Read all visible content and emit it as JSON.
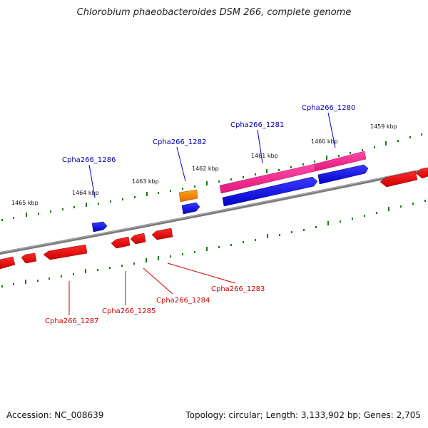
{
  "title": "Chlorobium phaeobacteroides DSM 266, complete genome",
  "footer": {
    "accession": "Accession: NC_008639",
    "summary": "Topology: circular; Length: 3,133,902 bp; Genes: 2,705"
  },
  "colors": {
    "backbone": "#808080",
    "tick": "#1a7a1a",
    "forward_gene": "#0000ee",
    "reverse_gene": "#ee0000",
    "highlight_gene": "#ff2d96",
    "other_gene": "#ff8c00",
    "forward_label": "#0000aa",
    "reverse_label": "#cc0000"
  },
  "kbp_labels": [
    "1465 kbp",
    "1464 kbp",
    "1463 kbp",
    "1462 kbp",
    "1461 kbp",
    "1460 kbp",
    "1459 kbp"
  ],
  "forward_labels": [
    "Cpha266_1286",
    "Cpha266_1282",
    "Cpha266_1281",
    "Cpha266_1280"
  ],
  "reverse_labels": [
    "Cpha266_1287",
    "Cpha266_1285",
    "Cpha266_1284",
    "Cpha266_1283"
  ]
}
